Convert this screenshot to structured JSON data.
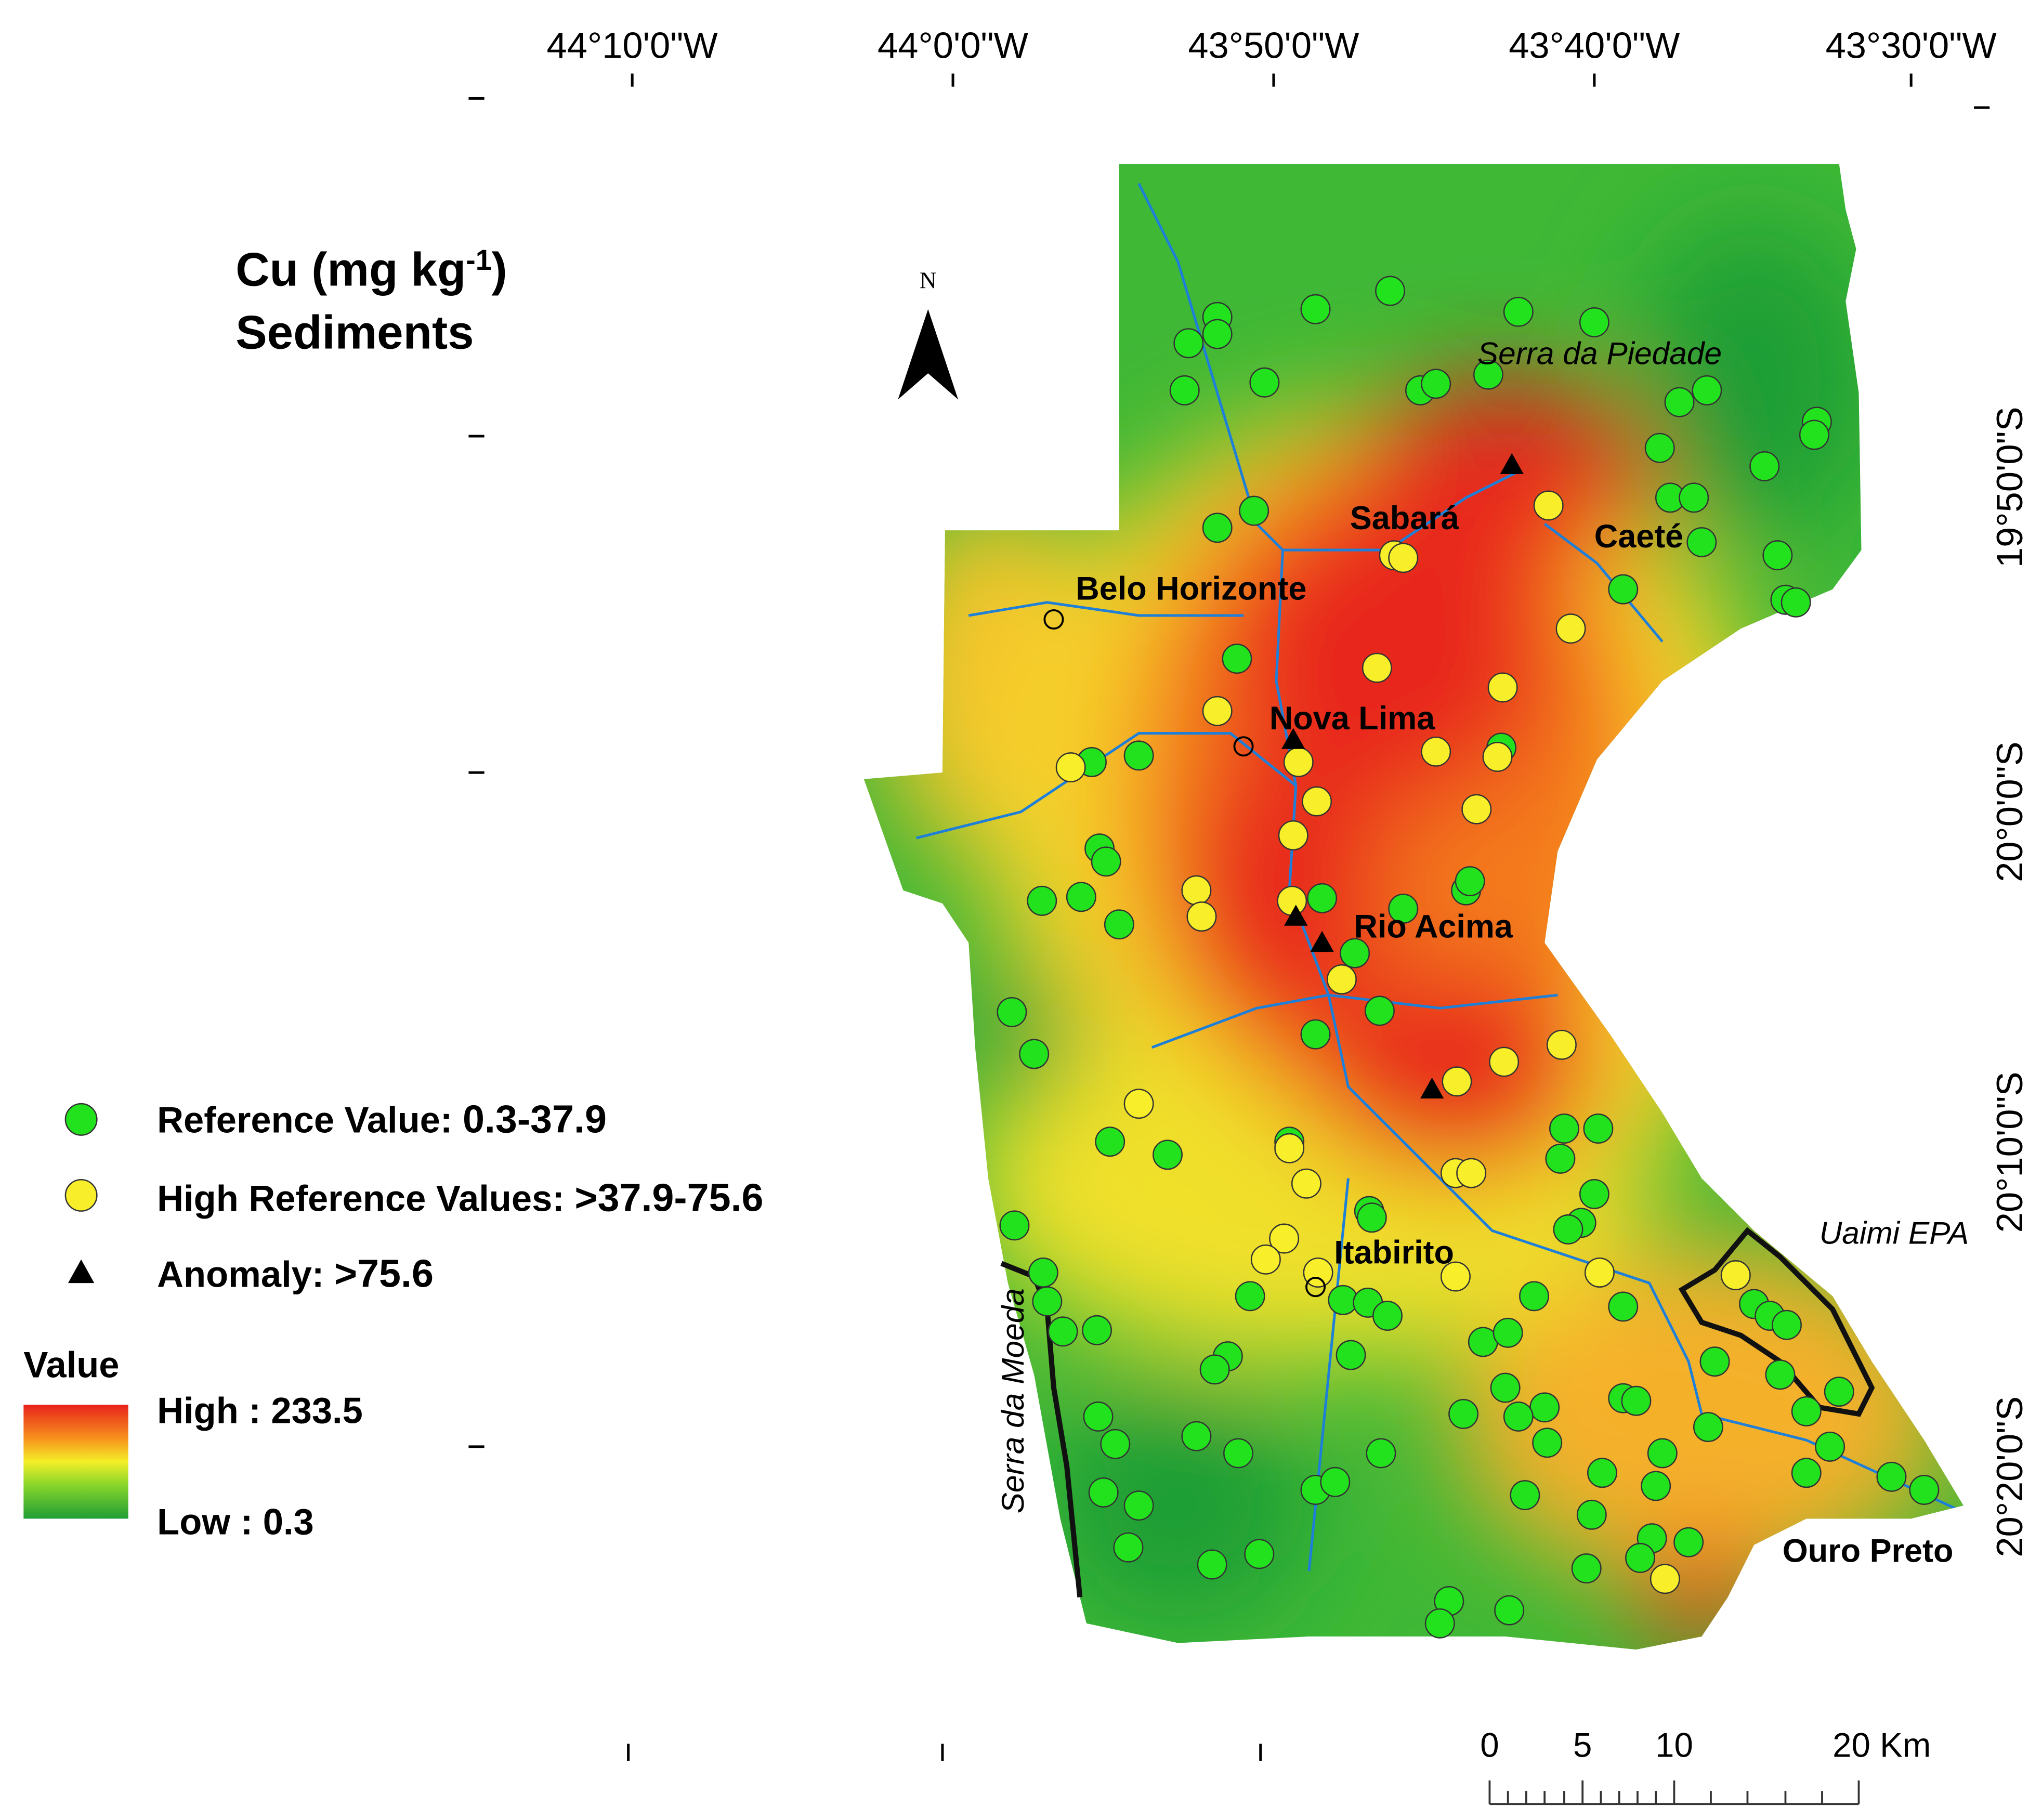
{
  "title": {
    "main": "Cu (mg kg",
    "superscript": "-1",
    "end": ")",
    "line2": "Sediments"
  },
  "north_arrow": "N",
  "longitude_labels": [
    "44°10'0\"W",
    "44°0'0\"W",
    "43°50'0\"W",
    "43°40'0\"W",
    "43°30'0\"W"
  ],
  "latitude_labels": [
    "19°50'0\"S",
    "20°0'0\"S",
    "20°10'0\"S",
    "20°20'0\"S"
  ],
  "places": [
    "Serra da Piedade",
    "Sabará",
    "Caeté",
    "Belo Horizonte",
    "Nova Lima",
    "Rio Acima",
    "Itabirito",
    "Uaimi EPA",
    "Serra da Moeda",
    "Ouro Preto"
  ],
  "legend": {
    "items": [
      {
        "label": "Reference Value:",
        "range": "0.3-37.9"
      },
      {
        "label": "High Reference Values:",
        "range": ">37.9-75.6"
      },
      {
        "label": "Anomaly:",
        "range": ">75.6"
      }
    ],
    "value_title": "Value",
    "high": "High : 233.5",
    "low": "Low : 0.3"
  },
  "scale_bar": [
    "0",
    "5",
    "10",
    "20 Km"
  ]
}
